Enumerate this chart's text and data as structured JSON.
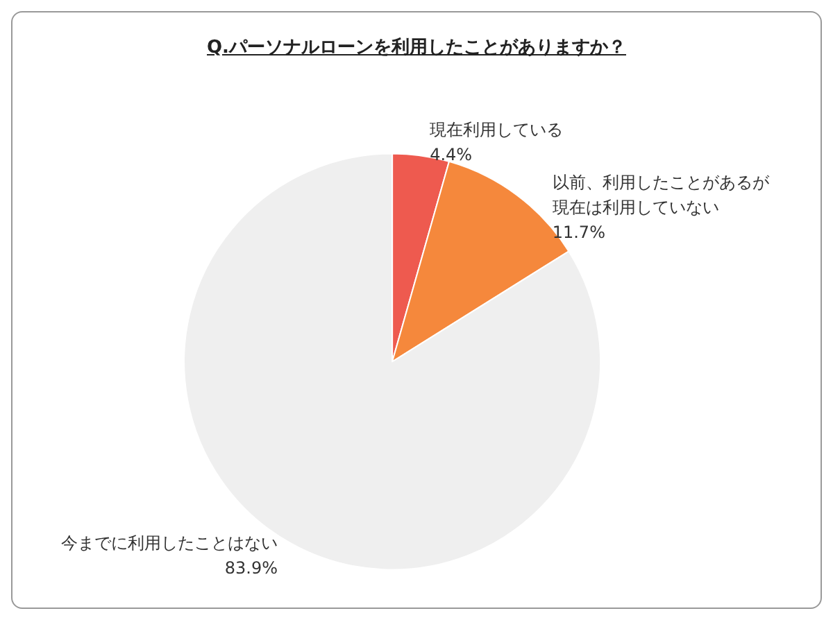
{
  "chart_data": {
    "type": "pie",
    "title": "Q.パーソナルローンを利用したことがありますか？",
    "categories": [
      "現在利用している",
      "以前、利用したことがあるが現在は利用していない",
      "今までに利用したことはない"
    ],
    "values": [
      4.4,
      11.7,
      83.9
    ],
    "colors": [
      "#ee5a4f",
      "#f5883c",
      "#efefef"
    ],
    "value_labels": [
      "4.4%",
      "11.7%",
      "83.9%"
    ],
    "legend": false
  }
}
